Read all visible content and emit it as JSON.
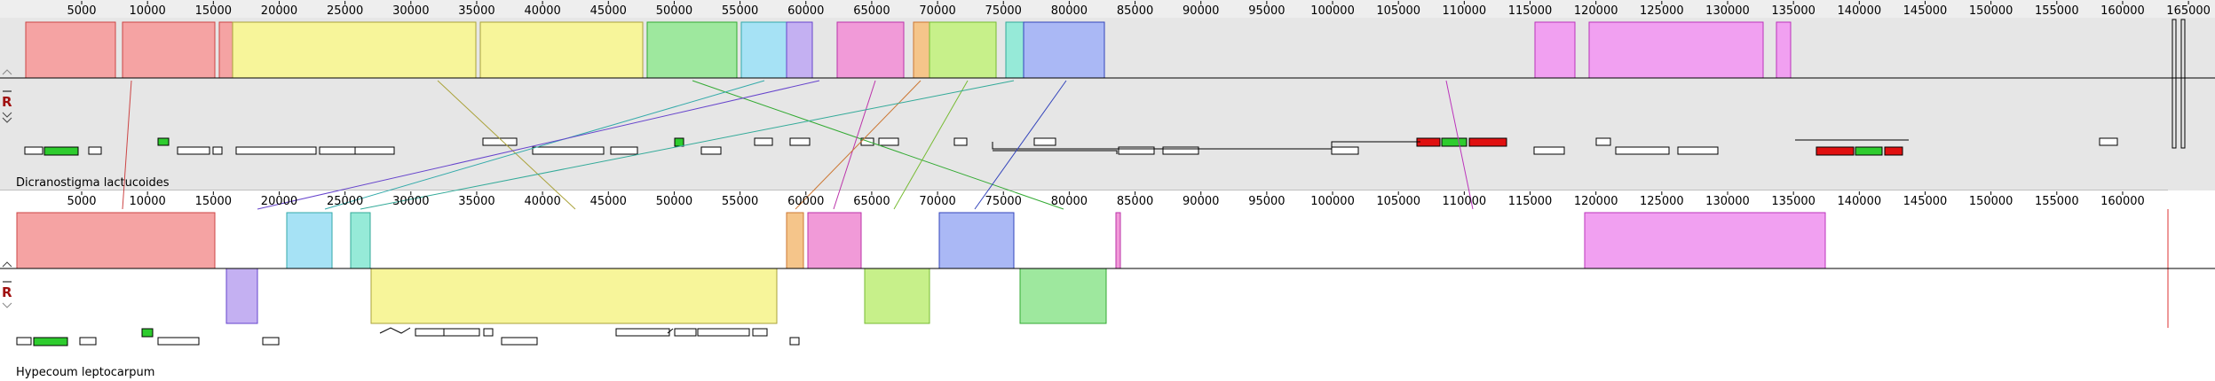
{
  "genomes": [
    {
      "name": "Dicranostigma lactucoides",
      "control": "R",
      "ticks": [
        5000,
        10000,
        15000,
        20000,
        25000,
        30000,
        35000,
        40000,
        45000,
        50000,
        55000,
        60000,
        65000,
        70000,
        75000,
        80000,
        85000,
        90000,
        95000,
        100000,
        105000,
        110000,
        115000,
        120000,
        125000,
        130000,
        135000,
        140000,
        145000,
        150000,
        155000,
        160000,
        165000
      ]
    },
    {
      "name": "Hypecoum leptocarpum",
      "control": "R",
      "ticks": [
        5000,
        10000,
        15000,
        20000,
        25000,
        30000,
        35000,
        40000,
        45000,
        50000,
        55000,
        60000,
        65000,
        70000,
        75000,
        80000,
        85000,
        90000,
        95000,
        100000,
        105000,
        110000,
        115000,
        120000,
        125000,
        130000,
        135000,
        140000,
        145000,
        150000,
        155000,
        160000
      ]
    }
  ]
}
